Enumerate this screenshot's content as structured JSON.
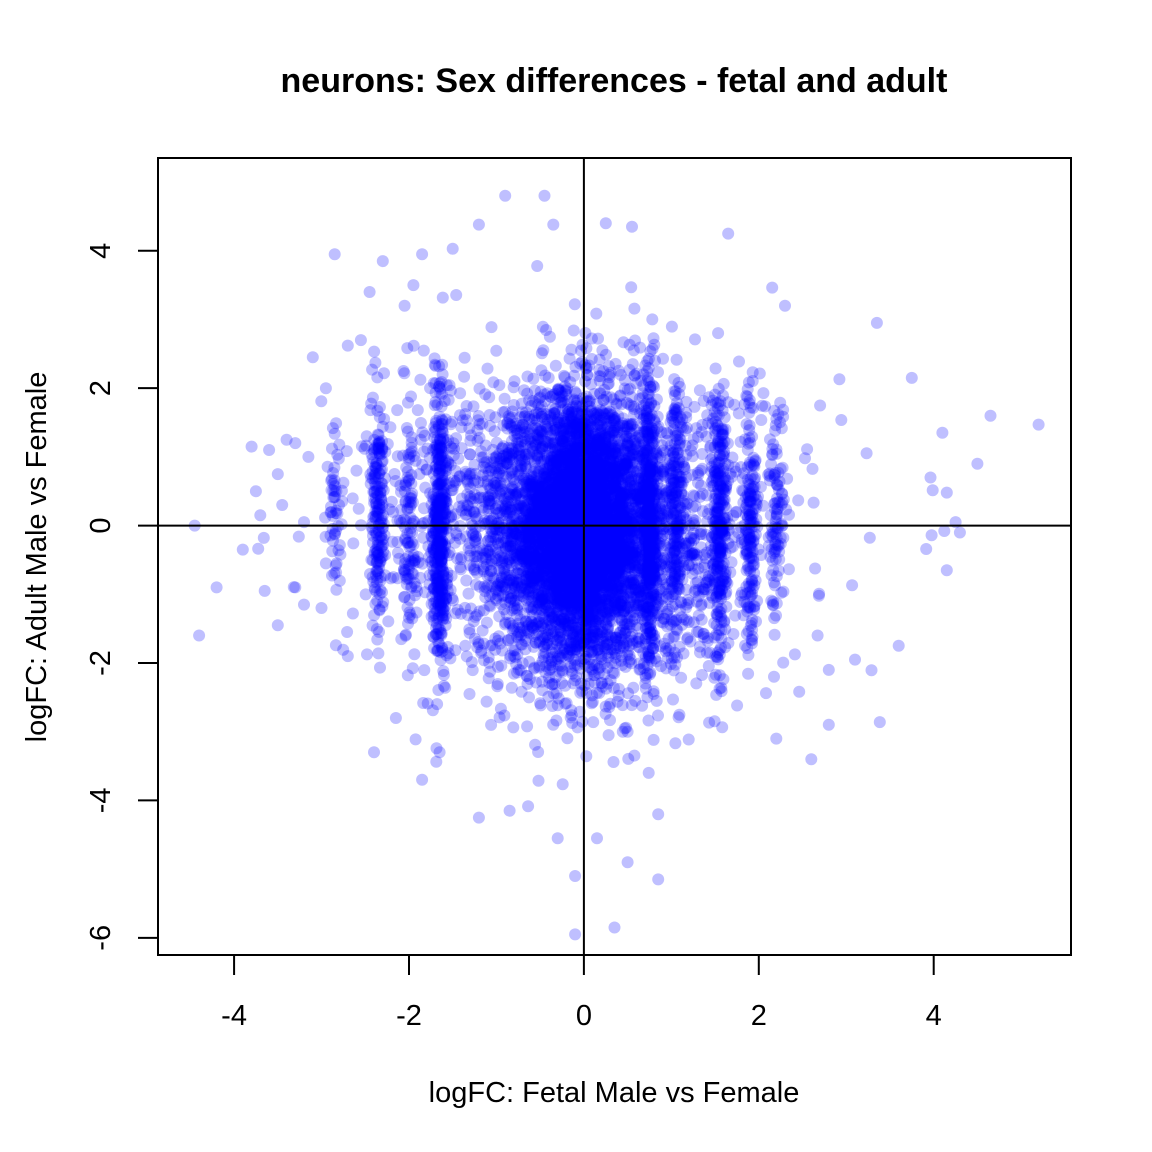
{
  "chart_data": {
    "type": "scatter",
    "title": "neurons: Sex differences - fetal and adult",
    "xlabel": "logFC: Fetal Male vs Female",
    "ylabel": "logFC: Adult Male vs Female",
    "xlim": [
      -4.87,
      5.57
    ],
    "ylim": [
      -6.25,
      5.35
    ],
    "x_ticks": [
      -4,
      -2,
      0,
      2,
      4
    ],
    "y_ticks": [
      -6,
      -4,
      -2,
      0,
      2,
      4
    ],
    "x_tick_labels": [
      "-4",
      "-2",
      "0",
      "2",
      "4"
    ],
    "y_tick_labels": [
      "-6",
      "-4",
      "-2",
      "0",
      "2",
      "4"
    ],
    "reference_lines": {
      "vertical_x": 0,
      "horizontal_y": 0
    },
    "grid": false,
    "point_color": "#0000ff",
    "point_opacity": 0.25,
    "series": [
      {
        "points": [
          [
            -4.45,
            0.0
          ],
          [
            -4.2,
            -0.9
          ],
          [
            -4.4,
            -1.6
          ],
          [
            -3.9,
            -0.35
          ],
          [
            -3.75,
            0.5
          ],
          [
            -3.5,
            0.75
          ],
          [
            -3.3,
            1.2
          ],
          [
            -3.1,
            2.45
          ],
          [
            -3.0,
            -1.2
          ],
          [
            -2.95,
            2.0
          ],
          [
            -2.85,
            3.95
          ],
          [
            -2.8,
            0.3
          ],
          [
            -2.7,
            2.62
          ],
          [
            -2.55,
            2.7
          ],
          [
            -2.45,
            3.4
          ],
          [
            -2.3,
            3.85
          ],
          [
            -2.05,
            3.2
          ],
          [
            -1.95,
            3.5
          ],
          [
            -1.85,
            3.95
          ],
          [
            -1.5,
            4.03
          ],
          [
            -1.2,
            4.38
          ],
          [
            -0.9,
            4.8
          ],
          [
            -0.45,
            4.8
          ],
          [
            -0.35,
            4.38
          ],
          [
            0.25,
            4.4
          ],
          [
            0.55,
            4.35
          ],
          [
            1.65,
            4.25
          ],
          [
            2.3,
            3.2
          ],
          [
            3.35,
            2.95
          ],
          [
            3.75,
            2.15
          ],
          [
            4.1,
            1.35
          ],
          [
            4.65,
            1.6
          ],
          [
            5.2,
            1.47
          ],
          [
            4.5,
            0.9
          ],
          [
            4.15,
            0.48
          ],
          [
            4.3,
            -0.1
          ],
          [
            4.25,
            0.05
          ],
          [
            4.15,
            -0.65
          ],
          [
            3.6,
            -1.75
          ],
          [
            3.1,
            -1.95
          ],
          [
            2.8,
            -2.1
          ],
          [
            2.6,
            -3.4
          ],
          [
            2.8,
            -2.9
          ],
          [
            2.2,
            -3.1
          ],
          [
            0.85,
            -4.2
          ],
          [
            0.85,
            -5.15
          ],
          [
            0.5,
            -4.9
          ],
          [
            0.35,
            -5.85
          ],
          [
            -0.1,
            -5.1
          ],
          [
            -0.1,
            -5.95
          ],
          [
            -0.3,
            -4.55
          ],
          [
            0.15,
            -4.55
          ],
          [
            -0.85,
            -4.15
          ],
          [
            -1.2,
            -4.25
          ],
          [
            -1.85,
            -3.7
          ],
          [
            -2.4,
            -3.3
          ],
          [
            -1.65,
            -3.3
          ],
          [
            -2.15,
            -2.8
          ],
          [
            -2.7,
            -1.9
          ],
          [
            -3.2,
            -1.15
          ],
          [
            -3.5,
            -1.45
          ],
          [
            -3.65,
            -0.95
          ],
          [
            -3.3,
            -0.9
          ],
          [
            -3.15,
            1.0
          ],
          [
            -3.4,
            1.25
          ],
          [
            -3.6,
            1.1
          ],
          [
            -3.8,
            1.15
          ],
          [
            -3.45,
            0.3
          ],
          [
            -3.2,
            0.05
          ],
          [
            -3.7,
            0.15
          ],
          [
            -2.95,
            -0.55
          ],
          [
            -2.6,
            0.8
          ]
        ]
      }
    ]
  }
}
